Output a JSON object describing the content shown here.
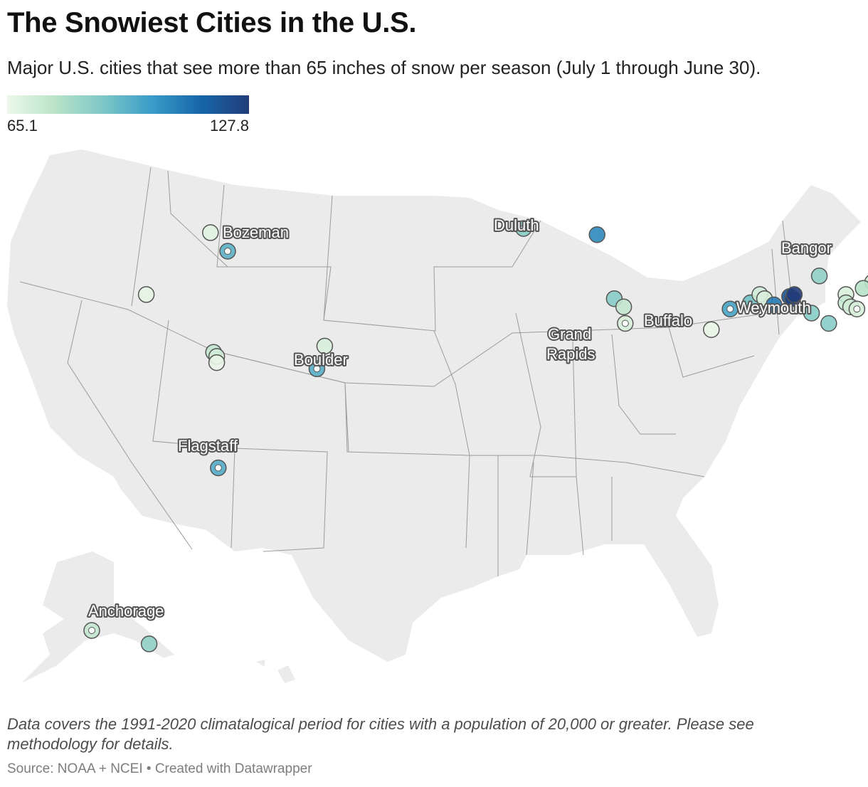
{
  "header": {
    "title": "The Snowiest Cities in the U.S.",
    "subtitle": "Major U.S. cities that see more than 65 inches of snow per season (July 1 through June 30)."
  },
  "legend": {
    "min_label": "65.1",
    "max_label": "127.8",
    "min": 65.1,
    "max": 127.8,
    "colors": [
      "#edf8e9",
      "#b9e3c8",
      "#7cc7c7",
      "#3a9bc8",
      "#1666a8",
      "#223c7a"
    ]
  },
  "map": {
    "labels": [
      {
        "id": "bozeman",
        "text": "Bozeman"
      },
      {
        "id": "duluth",
        "text": "Duluth"
      },
      {
        "id": "bangor",
        "text": "Bangor"
      },
      {
        "id": "weymouth",
        "text": "Weymouth"
      },
      {
        "id": "buffalo",
        "text": "Buffalo"
      },
      {
        "id": "grand-rapids-1",
        "text": "Grand"
      },
      {
        "id": "grand-rapids-2",
        "text": "Rapids"
      },
      {
        "id": "boulder",
        "text": "Boulder"
      },
      {
        "id": "flagstaff",
        "text": "Flagstaff"
      },
      {
        "id": "anchorage",
        "text": "Anchorage"
      }
    ],
    "cities": [
      {
        "lat": 46.6,
        "lon": -112.1,
        "value": 68
      },
      {
        "lat": 45.7,
        "lon": -111.0,
        "value": 96,
        "labeled": true
      },
      {
        "lat": 43.6,
        "lon": -116.2,
        "value": 67
      },
      {
        "lat": 41.1,
        "lon": -104.8,
        "value": 70
      },
      {
        "lat": 40.8,
        "lon": -111.9,
        "value": 75
      },
      {
        "lat": 40.6,
        "lon": -111.7,
        "value": 72
      },
      {
        "lat": 40.3,
        "lon": -111.7,
        "value": 66
      },
      {
        "lat": 40.0,
        "lon": -105.3,
        "value": 97,
        "labeled": true
      },
      {
        "lat": 35.2,
        "lon": -111.6,
        "value": 98,
        "labeled": true
      },
      {
        "lat": 46.8,
        "lon": -92.1,
        "value": 88,
        "labeled": true
      },
      {
        "lat": 46.5,
        "lon": -87.4,
        "value": 107
      },
      {
        "lat": 43.4,
        "lon": -86.3,
        "value": 88
      },
      {
        "lat": 43.0,
        "lon": -85.7,
        "value": 75
      },
      {
        "lat": 42.2,
        "lon": -85.6,
        "value": 70,
        "labeled": true
      },
      {
        "lat": 41.9,
        "lon": -80.1,
        "value": 66
      },
      {
        "lat": 42.9,
        "lon": -78.9,
        "value": 100,
        "labeled": true
      },
      {
        "lat": 43.2,
        "lon": -77.6,
        "value": 92
      },
      {
        "lat": 43.6,
        "lon": -77.0,
        "value": 72
      },
      {
        "lat": 43.4,
        "lon": -76.7,
        "value": 70
      },
      {
        "lat": 43.1,
        "lon": -76.1,
        "value": 110
      },
      {
        "lat": 43.5,
        "lon": -75.1,
        "value": 120
      },
      {
        "lat": 43.4,
        "lon": -74.9,
        "value": 126
      },
      {
        "lat": 43.6,
        "lon": -74.8,
        "value": 127.8
      },
      {
        "lat": 42.7,
        "lon": -73.7,
        "value": 88
      },
      {
        "lat": 44.5,
        "lon": -73.2,
        "value": 86
      },
      {
        "lat": 44.8,
        "lon": -68.8,
        "value": 75,
        "labeled": true
      },
      {
        "lat": 44.2,
        "lon": -69.8,
        "value": 73
      },
      {
        "lat": 43.9,
        "lon": -70.4,
        "value": 78
      },
      {
        "lat": 43.6,
        "lon": -71.5,
        "value": 70
      },
      {
        "lat": 43.2,
        "lon": -71.5,
        "value": 74
      },
      {
        "lat": 43.0,
        "lon": -71.2,
        "value": 72
      },
      {
        "lat": 42.9,
        "lon": -70.8,
        "value": 70,
        "labeled": true
      },
      {
        "lat": 42.2,
        "lon": -72.6,
        "value": 88
      },
      {
        "lat": 61.2,
        "lon": -149.9,
        "value": 75,
        "labeled": true
      },
      {
        "lat": 58.3,
        "lon": -134.4,
        "value": 86
      }
    ]
  },
  "notes": "Data covers the 1991-2020 climatalogical period for cities with a population of 20,000 or greater. Please see methodology for details.",
  "source": "Source: NOAA + NCEI • Created with Datawrapper"
}
